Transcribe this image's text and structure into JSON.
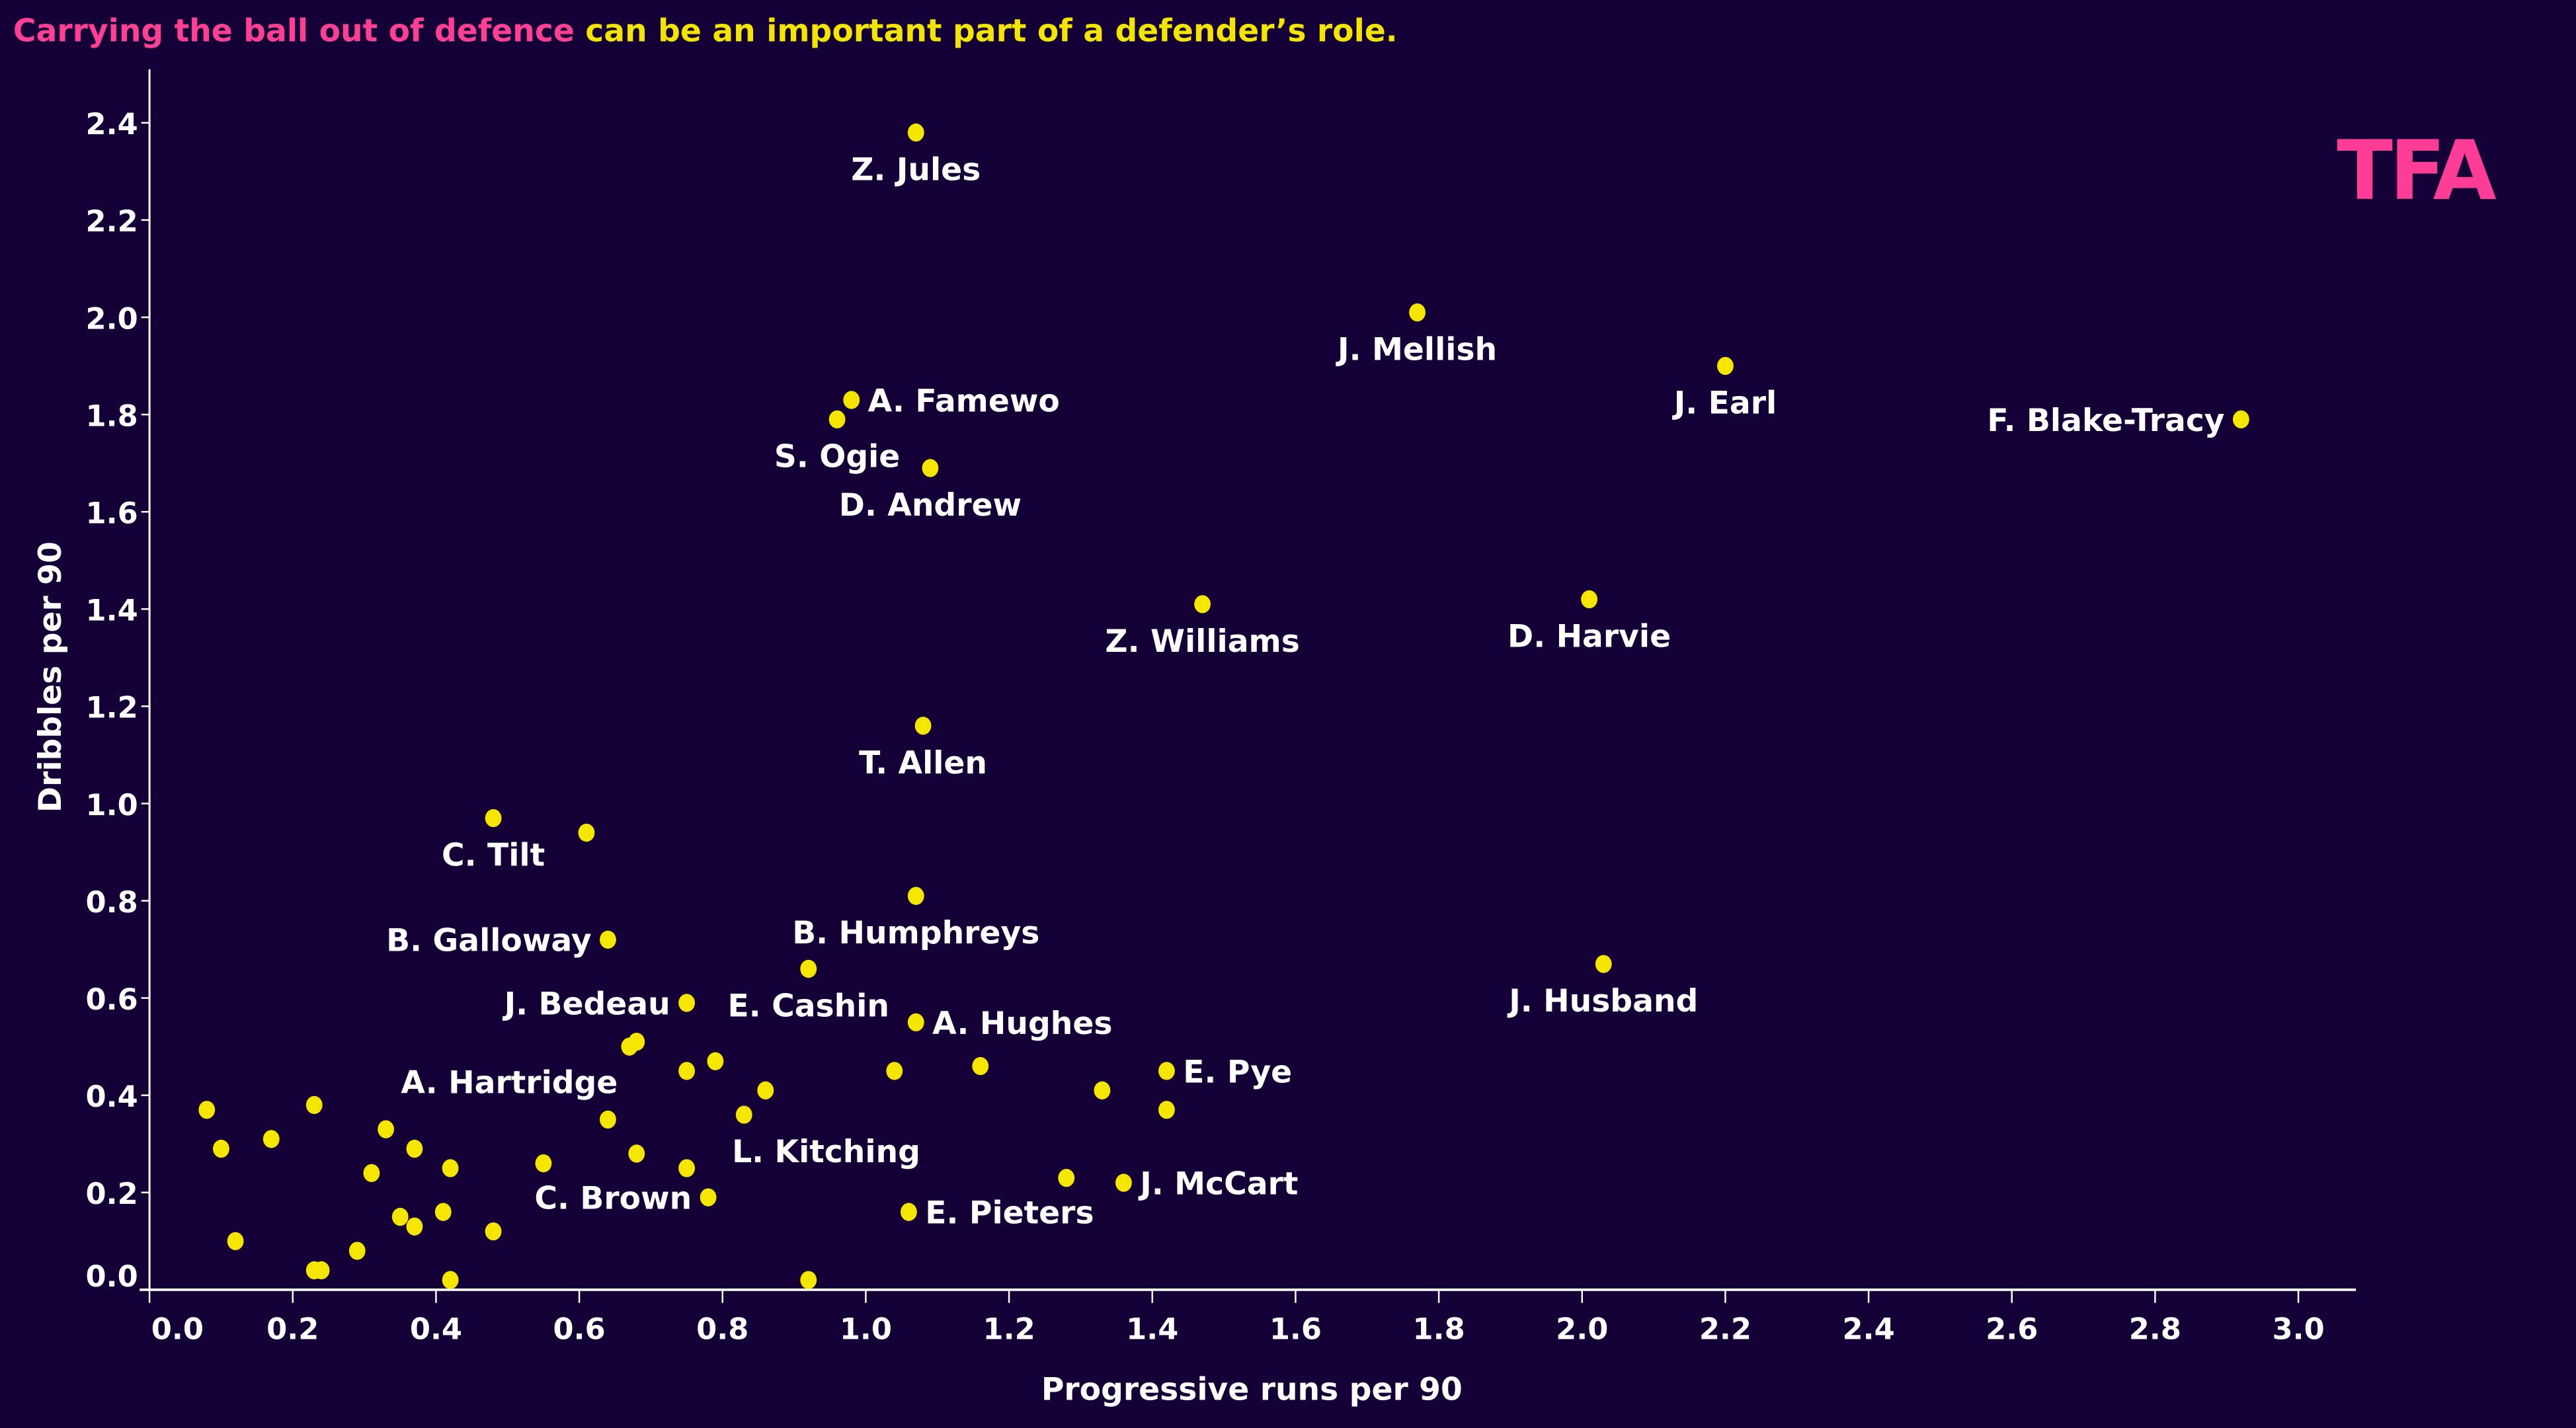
{
  "title": {
    "highlight": "Carrying the ball out of defence",
    "rest": " can be an important part of a defender’s role.",
    "highlight_color": "#ff3f94",
    "rest_color": "#f2e600"
  },
  "logo": {
    "text": "TFA",
    "color": "#ff3c96"
  },
  "colors": {
    "background": "#140037",
    "point": "#f5e600",
    "text": "#ffffff",
    "axis": "#ffffff"
  },
  "chart_data": {
    "type": "scatter",
    "title": "Carrying the ball out of defence can be an important part of a defender’s role.",
    "xlabel": "Progressive runs per 90",
    "ylabel": "Dribbles per 90",
    "xlim": [
      0,
      3.05
    ],
    "ylim": [
      0,
      2.45
    ],
    "x_ticks": [
      "0.0",
      "0.2",
      "0.4",
      "0.6",
      "0.8",
      "1.0",
      "1.2",
      "1.4",
      "1.6",
      "1.8",
      "2.0",
      "2.2",
      "2.4",
      "2.6",
      "2.8",
      "3.0"
    ],
    "y_ticks": [
      "0.0",
      "0.2",
      "0.4",
      "0.6",
      "0.8",
      "1.0",
      "1.2",
      "1.4",
      "1.6",
      "1.8",
      "2.0",
      "2.2",
      "2.4"
    ],
    "grid": false,
    "points": [
      {
        "x": 1.07,
        "y": 2.38,
        "label": "Z. Jules",
        "label_pos": "below"
      },
      {
        "x": 1.77,
        "y": 2.01,
        "label": "J. Mellish",
        "label_pos": "below"
      },
      {
        "x": 2.2,
        "y": 1.9,
        "label": "J. Earl",
        "label_pos": "below"
      },
      {
        "x": 2.92,
        "y": 1.79,
        "label": "F. Blake-Tracy",
        "label_pos": "left"
      },
      {
        "x": 0.98,
        "y": 1.83,
        "label": "A. Famewo",
        "label_pos": "right"
      },
      {
        "x": 0.96,
        "y": 1.79,
        "label": "S. Ogie",
        "label_pos": "below"
      },
      {
        "x": 1.09,
        "y": 1.69,
        "label": "D. Andrew",
        "label_pos": "below"
      },
      {
        "x": 1.47,
        "y": 1.41,
        "label": "Z. Williams",
        "label_pos": "below"
      },
      {
        "x": 2.01,
        "y": 1.42,
        "label": "D. Harvie",
        "label_pos": "below"
      },
      {
        "x": 1.08,
        "y": 1.16,
        "label": "T. Allen",
        "label_pos": "below"
      },
      {
        "x": 0.48,
        "y": 0.97,
        "label": "C. Tilt",
        "label_pos": "below"
      },
      {
        "x": 0.61,
        "y": 0.94,
        "label": "",
        "label_pos": ""
      },
      {
        "x": 1.07,
        "y": 0.81,
        "label": "B. Humphreys",
        "label_pos": "below"
      },
      {
        "x": 0.64,
        "y": 0.72,
        "label": "B. Galloway",
        "label_pos": "left"
      },
      {
        "x": 2.03,
        "y": 0.67,
        "label": "J. Husband",
        "label_pos": "below"
      },
      {
        "x": 0.92,
        "y": 0.66,
        "label": "E. Cashin",
        "label_pos": "below"
      },
      {
        "x": 0.75,
        "y": 0.59,
        "label": "J. Bedeau",
        "label_pos": "left"
      },
      {
        "x": 1.07,
        "y": 0.55,
        "label": "A. Hughes",
        "label_pos": "right"
      },
      {
        "x": 0.67,
        "y": 0.5,
        "label": "",
        "label_pos": ""
      },
      {
        "x": 0.68,
        "y": 0.51,
        "label": "",
        "label_pos": ""
      },
      {
        "x": 0.79,
        "y": 0.47,
        "label": "",
        "label_pos": ""
      },
      {
        "x": 0.75,
        "y": 0.45,
        "label": "",
        "label_pos": ""
      },
      {
        "x": 1.04,
        "y": 0.45,
        "label": "",
        "label_pos": ""
      },
      {
        "x": 1.16,
        "y": 0.46,
        "label": "",
        "label_pos": ""
      },
      {
        "x": 1.42,
        "y": 0.45,
        "label": "E. Pye",
        "label_pos": "right"
      },
      {
        "x": 0.86,
        "y": 0.41,
        "label": "",
        "label_pos": ""
      },
      {
        "x": 1.33,
        "y": 0.41,
        "label": "",
        "label_pos": ""
      },
      {
        "x": 1.42,
        "y": 0.37,
        "label": "",
        "label_pos": ""
      },
      {
        "x": 0.08,
        "y": 0.37,
        "label": "",
        "label_pos": ""
      },
      {
        "x": 0.23,
        "y": 0.38,
        "label": "",
        "label_pos": ""
      },
      {
        "x": 0.17,
        "y": 0.31,
        "label": "",
        "label_pos": ""
      },
      {
        "x": 0.1,
        "y": 0.29,
        "label": "",
        "label_pos": ""
      },
      {
        "x": 0.33,
        "y": 0.33,
        "label": "",
        "label_pos": ""
      },
      {
        "x": 0.37,
        "y": 0.29,
        "label": "",
        "label_pos": ""
      },
      {
        "x": 0.64,
        "y": 0.35,
        "label": "A. Hartridge",
        "label_pos": "above-left"
      },
      {
        "x": 0.83,
        "y": 0.36,
        "label": "L. Kitching",
        "label_pos": "below-right"
      },
      {
        "x": 0.68,
        "y": 0.28,
        "label": "",
        "label_pos": ""
      },
      {
        "x": 0.31,
        "y": 0.24,
        "label": "",
        "label_pos": ""
      },
      {
        "x": 0.42,
        "y": 0.25,
        "label": "",
        "label_pos": ""
      },
      {
        "x": 0.55,
        "y": 0.26,
        "label": "",
        "label_pos": ""
      },
      {
        "x": 0.75,
        "y": 0.25,
        "label": "",
        "label_pos": ""
      },
      {
        "x": 1.28,
        "y": 0.23,
        "label": "",
        "label_pos": ""
      },
      {
        "x": 1.36,
        "y": 0.22,
        "label": "J. McCart",
        "label_pos": "right"
      },
      {
        "x": 0.78,
        "y": 0.19,
        "label": "C. Brown",
        "label_pos": "left"
      },
      {
        "x": 1.06,
        "y": 0.16,
        "label": "E. Pieters",
        "label_pos": "right"
      },
      {
        "x": 0.41,
        "y": 0.16,
        "label": "",
        "label_pos": ""
      },
      {
        "x": 0.35,
        "y": 0.15,
        "label": "",
        "label_pos": ""
      },
      {
        "x": 0.37,
        "y": 0.13,
        "label": "",
        "label_pos": ""
      },
      {
        "x": 0.48,
        "y": 0.12,
        "label": "",
        "label_pos": ""
      },
      {
        "x": 0.12,
        "y": 0.1,
        "label": "",
        "label_pos": ""
      },
      {
        "x": 0.29,
        "y": 0.08,
        "label": "",
        "label_pos": ""
      },
      {
        "x": 0.23,
        "y": 0.04,
        "label": "",
        "label_pos": ""
      },
      {
        "x": 0.24,
        "y": 0.04,
        "label": "",
        "label_pos": ""
      },
      {
        "x": 0.42,
        "y": 0.02,
        "label": "",
        "label_pos": ""
      },
      {
        "x": 0.92,
        "y": 0.02,
        "label": "",
        "label_pos": ""
      }
    ]
  }
}
